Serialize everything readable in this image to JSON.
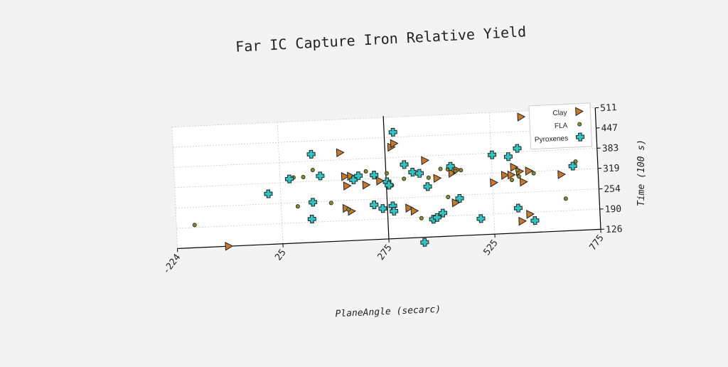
{
  "chart_data": {
    "type": "scatter",
    "title": "Far IC Capture Iron Relative Yield",
    "xlabel": "PlaneAngle (secarc)",
    "ylabel": "Time (100 s)",
    "xlim": [
      -224,
      775
    ],
    "ylim": [
      126,
      511
    ],
    "x_ticks": [
      "-224",
      "25",
      "275",
      "525",
      "775"
    ],
    "x_tick_values": [
      -224,
      25,
      275,
      525,
      775
    ],
    "y_ticks": [
      "126",
      "190",
      "254",
      "319",
      "383",
      "447",
      "511"
    ],
    "y_tick_values": [
      126,
      190,
      254,
      319,
      383,
      447,
      511
    ],
    "grid": true,
    "legend_position": "top-right",
    "colors": {
      "Clay": "#c8782a",
      "FLA": "#8c8a2a",
      "Pyroxenes": "#2ec4c4",
      "edge": "#222222",
      "axis": "#000000",
      "grid": "#c8c8c8",
      "plot_bg": "#ffffff"
    },
    "series": [
      {
        "name": "Clay",
        "marker": "triangle-right",
        "points": [
          [
            -103,
            126
          ],
          [
            169,
            406
          ],
          [
            290,
            416
          ],
          [
            297,
            427
          ],
          [
            368,
            369
          ],
          [
            178,
            330
          ],
          [
            192,
            330
          ],
          [
            227,
            300
          ],
          [
            182,
            300
          ],
          [
            260,
            311
          ],
          [
            326,
            221
          ],
          [
            338,
            211
          ],
          [
            395,
            311
          ],
          [
            178,
            229
          ],
          [
            190,
            219
          ],
          [
            436,
            231
          ],
          [
            431,
            325
          ],
          [
            442,
            335
          ],
          [
            528,
            289
          ],
          [
            555,
            311
          ],
          [
            570,
            311
          ],
          [
            577,
            335
          ],
          [
            590,
            321
          ],
          [
            598,
            287
          ],
          [
            612,
            321
          ],
          [
            688,
            305
          ],
          [
            591,
            163
          ],
          [
            610,
            184
          ],
          [
            599,
            493
          ]
        ]
      },
      {
        "name": "FLA",
        "marker": "circle",
        "points": [
          [
            -181,
            198
          ],
          [
            57,
            334
          ],
          [
            80,
            334
          ],
          [
            103,
            355
          ],
          [
            64,
            242
          ],
          [
            143,
            248
          ],
          [
            183,
            225
          ],
          [
            228,
            343
          ],
          [
            277,
            334
          ],
          [
            288,
            295
          ],
          [
            317,
            314
          ],
          [
            404,
            340
          ],
          [
            421,
            338
          ],
          [
            439,
            331
          ],
          [
            452,
            333
          ],
          [
            375,
            314
          ],
          [
            354,
            187
          ],
          [
            419,
            250
          ],
          [
            571,
            295
          ],
          [
            585,
            325
          ],
          [
            588,
            305
          ],
          [
            623,
            313
          ],
          [
            723,
            344
          ],
          [
            696,
            228
          ],
          [
            703,
            419
          ]
        ]
      },
      {
        "name": "Pyroxenes",
        "marker": "plus",
        "points": [
          [
            -4,
            286
          ],
          [
            47,
            330
          ],
          [
            101,
            405
          ],
          [
            120,
            335
          ],
          [
            100,
            253
          ],
          [
            96,
            200
          ],
          [
            198,
            318
          ],
          [
            210,
            330
          ],
          [
            247,
            330
          ],
          [
            244,
            236
          ],
          [
            264,
            223
          ],
          [
            277,
            307
          ],
          [
            281,
            296
          ],
          [
            288,
            230
          ],
          [
            290,
            213
          ],
          [
            296,
            463
          ],
          [
            319,
            359
          ],
          [
            338,
            334
          ],
          [
            354,
            329
          ],
          [
            372,
            286
          ],
          [
            382,
            182
          ],
          [
            391,
            187
          ],
          [
            405,
            200
          ],
          [
            428,
            347
          ],
          [
            446,
            244
          ],
          [
            494,
            177
          ],
          [
            527,
            377
          ],
          [
            565,
            369
          ],
          [
            583,
            205
          ],
          [
            621,
            163
          ],
          [
            587,
            394
          ],
          [
            716,
            330
          ],
          [
            359,
            110
          ]
        ]
      }
    ]
  }
}
